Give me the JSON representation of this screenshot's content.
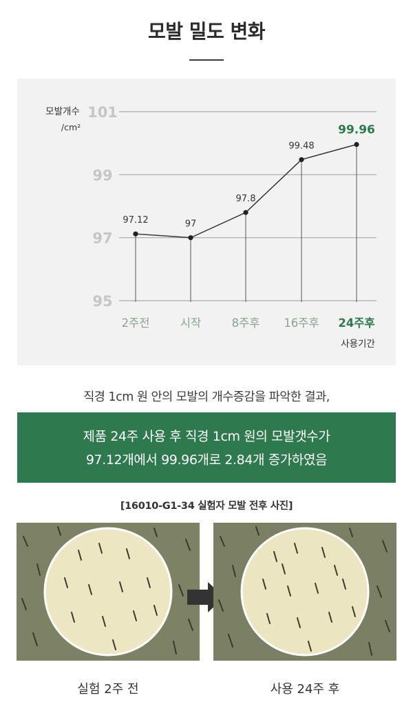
{
  "title": "모발 밀도 변화",
  "chart_data": {
    "type": "line",
    "y_label_line1": "모발개수",
    "y_label_line2": "/cm²",
    "x_label": "사용기간",
    "ylim": [
      95,
      101
    ],
    "y_ticks": [
      "95",
      "97",
      "99",
      "101"
    ],
    "categories": [
      "2주전",
      "시작",
      "8주후",
      "16주후",
      "24주후"
    ],
    "values": [
      97.12,
      97,
      97.8,
      99.48,
      99.96
    ],
    "data_labels": [
      "97.12",
      "97",
      "97.8",
      "99.48",
      "99.96"
    ],
    "grid": true,
    "colors": {
      "line": "#333333",
      "grid": "#aaaaaa",
      "tick_label": "#c6c6c6",
      "highlight": "#2e7a4e",
      "muted_category": "#8aa491"
    }
  },
  "finding_text": "직경 1cm 원 안의 모발의 개수증감을 파악한 결과,",
  "banner": {
    "line1": "제품 24주 사용 후 직경 1cm 원의 모발갯수가",
    "line2": "97.12개에서 99.96개로 2.84개 증가하였음"
  },
  "photo_section": {
    "caption": "[16010-G1-34 실험자 모발 전후 사진]",
    "before_label": "실험 2주 전",
    "after_label": "사용 24주 후"
  }
}
